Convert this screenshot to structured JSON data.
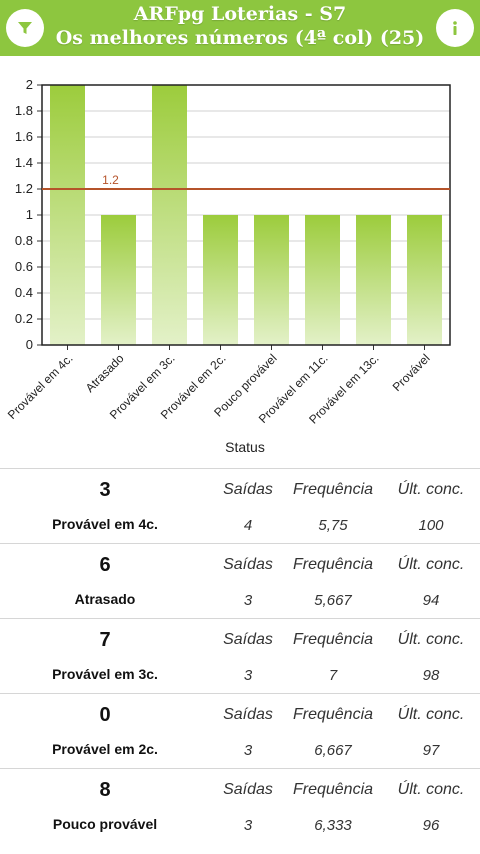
{
  "header": {
    "title": "ARFpg Loterias - S7",
    "subtitle": "Os melhores números (4ª col) (25)",
    "left_icon": "filter-icon",
    "right_icon": "info-icon",
    "bar_color": "#8dc63f"
  },
  "chart_data": {
    "type": "bar",
    "categories": [
      "Provável em 4c.",
      "Atrasado",
      "Provável em 3c.",
      "Provável em 2c.",
      "Pouco provável",
      "Provável em 11c.",
      "Provável em 13c.",
      "Provável"
    ],
    "values": [
      2,
      1,
      2,
      1,
      1,
      1,
      1,
      1
    ],
    "xlabel": "Status",
    "ylabel": "",
    "ylim": [
      0,
      2
    ],
    "yticks": [
      "0",
      "0.2",
      "0.4",
      "0.6",
      "0.8",
      "1",
      "1.2",
      "1.4",
      "1.6",
      "1.8",
      "2"
    ],
    "reference_line": {
      "value": 1.2,
      "label": "1.2",
      "color": "#b5532a"
    },
    "bar_color_top": "#9ccc3c",
    "bar_color_bottom": "#e3f1c8",
    "grid": true
  },
  "list": {
    "headers": {
      "saidas": "Saídas",
      "frequencia": "Frequência",
      "ult_conc": "Últ. conc."
    },
    "rows": [
      {
        "number": "3",
        "status": "Provável em 4c.",
        "saidas": "4",
        "frequencia": "5,75",
        "ult_conc": "100"
      },
      {
        "number": "6",
        "status": "Atrasado",
        "saidas": "3",
        "frequencia": "5,667",
        "ult_conc": "94"
      },
      {
        "number": "7",
        "status": "Provável em 3c.",
        "saidas": "3",
        "frequencia": "7",
        "ult_conc": "98"
      },
      {
        "number": "0",
        "status": "Provável em 2c.",
        "saidas": "3",
        "frequencia": "6,667",
        "ult_conc": "97"
      },
      {
        "number": "8",
        "status": "Pouco provável",
        "saidas": "3",
        "frequencia": "6,333",
        "ult_conc": "96"
      }
    ]
  }
}
